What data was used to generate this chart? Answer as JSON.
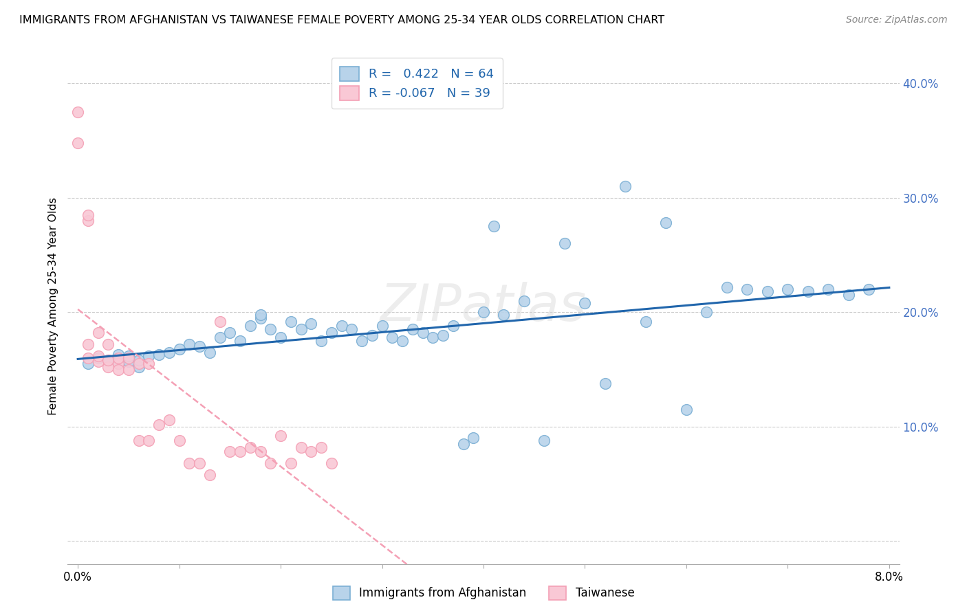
{
  "title": "IMMIGRANTS FROM AFGHANISTAN VS TAIWANESE FEMALE POVERTY AMONG 25-34 YEAR OLDS CORRELATION CHART",
  "source": "Source: ZipAtlas.com",
  "ylabel": "Female Poverty Among 25-34 Year Olds",
  "legend1_label": "Immigrants from Afghanistan",
  "legend2_label": "Taiwanese",
  "r1": 0.422,
  "n1": 64,
  "r2": -0.067,
  "n2": 39,
  "blue_color": "#7bafd4",
  "blue_fill": "#b8d3ea",
  "pink_color": "#f4a0b5",
  "pink_fill": "#f9c8d5",
  "line_blue": "#2166ac",
  "line_pink": "#f4a0b5",
  "xlim": [
    -0.001,
    0.081
  ],
  "ylim": [
    -0.02,
    0.43
  ],
  "yticks": [
    0.0,
    0.1,
    0.2,
    0.3,
    0.4
  ],
  "blue_x": [
    0.001,
    0.002,
    0.003,
    0.004,
    0.004,
    0.005,
    0.005,
    0.006,
    0.006,
    0.007,
    0.008,
    0.009,
    0.01,
    0.011,
    0.012,
    0.013,
    0.014,
    0.015,
    0.016,
    0.017,
    0.018,
    0.018,
    0.019,
    0.02,
    0.021,
    0.022,
    0.023,
    0.024,
    0.025,
    0.026,
    0.027,
    0.028,
    0.029,
    0.03,
    0.031,
    0.032,
    0.033,
    0.034,
    0.035,
    0.036,
    0.037,
    0.038,
    0.039,
    0.04,
    0.041,
    0.042,
    0.044,
    0.046,
    0.048,
    0.05,
    0.052,
    0.054,
    0.056,
    0.058,
    0.06,
    0.062,
    0.064,
    0.066,
    0.068,
    0.07,
    0.072,
    0.074,
    0.076,
    0.078
  ],
  "blue_y": [
    0.155,
    0.16,
    0.158,
    0.155,
    0.163,
    0.157,
    0.162,
    0.152,
    0.158,
    0.162,
    0.163,
    0.165,
    0.168,
    0.172,
    0.17,
    0.165,
    0.178,
    0.182,
    0.175,
    0.188,
    0.195,
    0.198,
    0.185,
    0.178,
    0.192,
    0.185,
    0.19,
    0.175,
    0.182,
    0.188,
    0.185,
    0.175,
    0.18,
    0.188,
    0.178,
    0.175,
    0.185,
    0.182,
    0.178,
    0.18,
    0.188,
    0.085,
    0.09,
    0.2,
    0.275,
    0.198,
    0.21,
    0.088,
    0.26,
    0.208,
    0.138,
    0.31,
    0.192,
    0.278,
    0.115,
    0.2,
    0.222,
    0.22,
    0.218,
    0.22,
    0.218,
    0.22,
    0.215,
    0.22
  ],
  "pink_x": [
    0.0,
    0.0,
    0.001,
    0.001,
    0.001,
    0.001,
    0.002,
    0.002,
    0.002,
    0.003,
    0.003,
    0.003,
    0.004,
    0.004,
    0.004,
    0.005,
    0.005,
    0.006,
    0.006,
    0.007,
    0.007,
    0.008,
    0.009,
    0.01,
    0.011,
    0.012,
    0.013,
    0.014,
    0.015,
    0.016,
    0.017,
    0.018,
    0.019,
    0.02,
    0.021,
    0.022,
    0.023,
    0.024,
    0.025
  ],
  "pink_y": [
    0.375,
    0.348,
    0.28,
    0.285,
    0.16,
    0.172,
    0.157,
    0.162,
    0.182,
    0.152,
    0.158,
    0.172,
    0.155,
    0.16,
    0.15,
    0.15,
    0.16,
    0.155,
    0.088,
    0.155,
    0.088,
    0.102,
    0.106,
    0.088,
    0.068,
    0.068,
    0.058,
    0.192,
    0.078,
    0.078,
    0.082,
    0.078,
    0.068,
    0.092,
    0.068,
    0.082,
    0.078,
    0.082,
    0.068
  ]
}
